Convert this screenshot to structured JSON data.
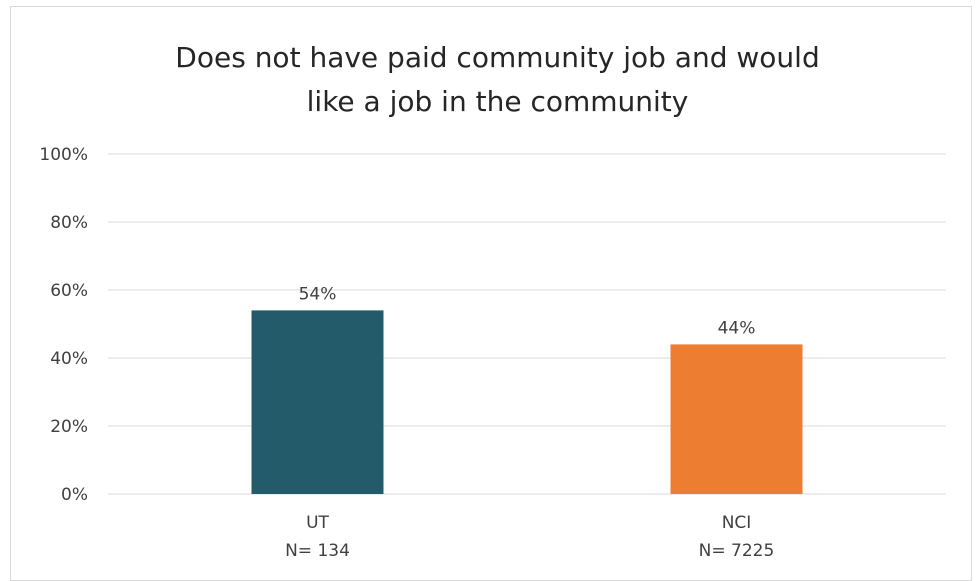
{
  "chart_data": {
    "type": "bar",
    "title_lines": [
      "Does not have paid community job and would",
      "like a job in the community"
    ],
    "categories": [
      "UT",
      "NCI"
    ],
    "category_sublabels": [
      "N= 134",
      "N= 7225"
    ],
    "values": [
      54,
      44
    ],
    "data_labels": [
      "54%",
      "44%"
    ],
    "colors": [
      "#235B6B",
      "#ED7D31"
    ],
    "ylim": [
      0,
      100
    ],
    "yticks": [
      0,
      20,
      40,
      60,
      80,
      100
    ],
    "ytick_labels": [
      "0%",
      "20%",
      "40%",
      "60%",
      "80%",
      "100%"
    ],
    "grid": true,
    "legend": "none"
  }
}
